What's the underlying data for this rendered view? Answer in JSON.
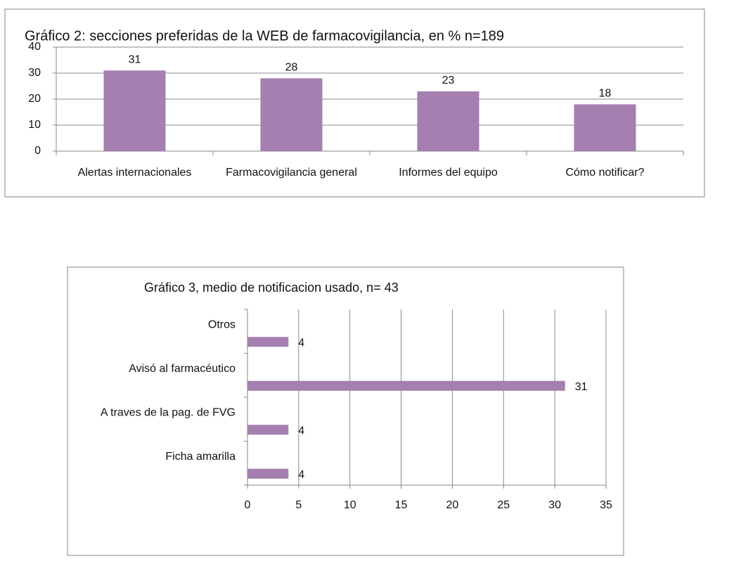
{
  "chart_data": [
    {
      "type": "bar",
      "orientation": "vertical",
      "title": "Gráfico 2: secciones preferidas  de la WEB de farmacovigilancia, en % n=189",
      "categories": [
        "Alertas internacionales",
        "Farmacovigilancia general",
        "Informes del equipo",
        "Cómo notificar?"
      ],
      "values": [
        31,
        28,
        23,
        18
      ],
      "color": "#a57fb0",
      "ylim": [
        0,
        40
      ],
      "yticks": [
        0,
        10,
        20,
        30,
        40
      ],
      "grid": true,
      "data_labels": true
    },
    {
      "type": "bar",
      "orientation": "horizontal",
      "title": "Gráfico 3, medio de notificacion usado, n= 43",
      "categories": [
        "Ficha amarilla",
        "A traves de la pag. de FVG",
        "Avisó al farmacéutico",
        "Otros"
      ],
      "values": [
        4,
        4,
        31,
        4
      ],
      "color": "#a57fb0",
      "xlim": [
        0,
        35
      ],
      "xticks": [
        0,
        5,
        10,
        15,
        20,
        25,
        30,
        35
      ],
      "grid": true,
      "data_labels": true
    }
  ]
}
